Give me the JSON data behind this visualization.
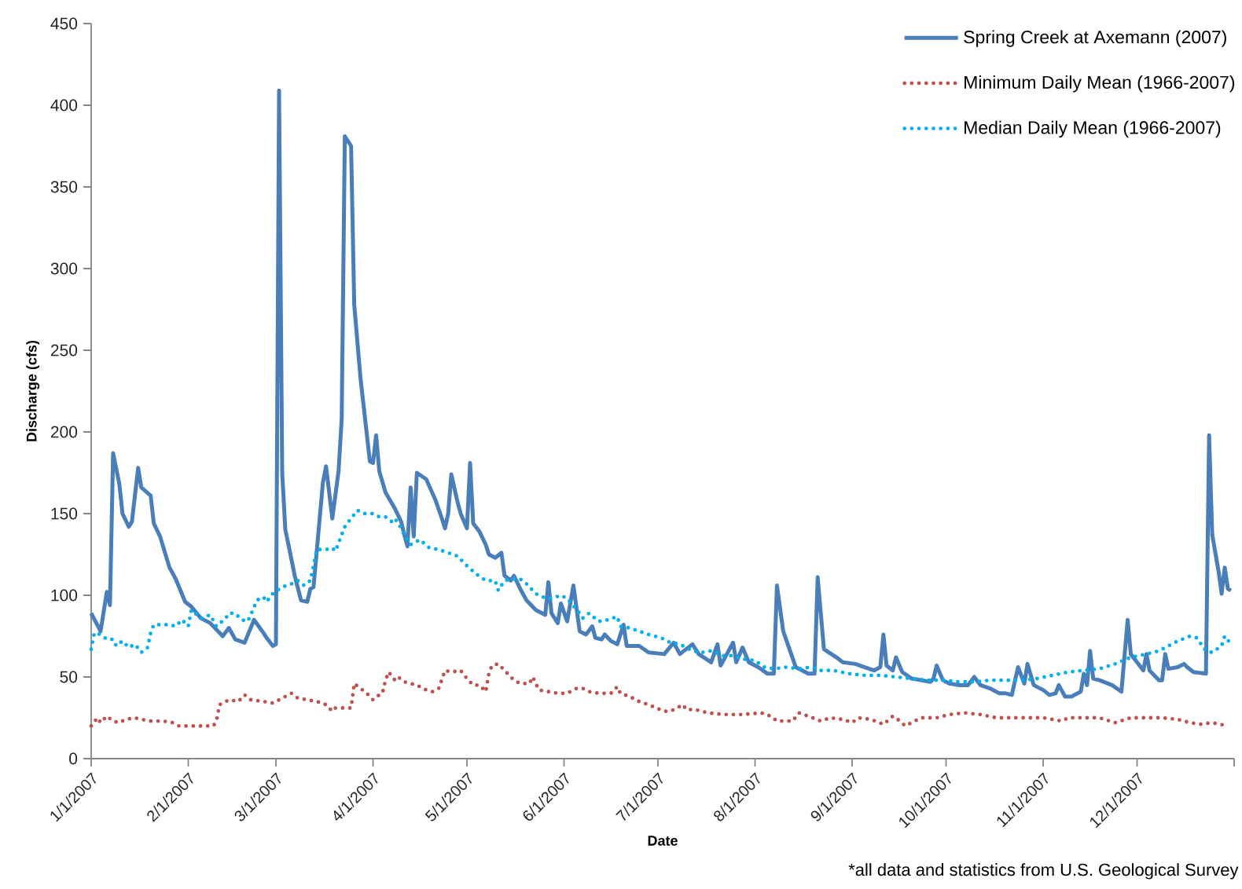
{
  "chart_data": {
    "type": "line",
    "xlabel": "Date",
    "ylabel": "Discharge (cfs)",
    "annotations": [
      "*all data and statistics from U.S. Geological Survey"
    ],
    "xlim": [
      "2007-01-01",
      "2008-01-01"
    ],
    "xticks": [
      {
        "value": "2007-01-01",
        "label": "1/1/2007"
      },
      {
        "value": "2007-02-01",
        "label": "2/1/2007"
      },
      {
        "value": "2007-03-01",
        "label": "3/1/2007"
      },
      {
        "value": "2007-04-01",
        "label": "4/1/2007"
      },
      {
        "value": "2007-05-01",
        "label": "5/1/2007"
      },
      {
        "value": "2007-06-01",
        "label": "6/1/2007"
      },
      {
        "value": "2007-07-01",
        "label": "7/1/2007"
      },
      {
        "value": "2007-08-01",
        "label": "8/1/2007"
      },
      {
        "value": "2007-09-01",
        "label": "9/1/2007"
      },
      {
        "value": "2007-10-01",
        "label": "10/1/2007"
      },
      {
        "value": "2007-11-01",
        "label": "11/1/2007"
      },
      {
        "value": "2007-12-01",
        "label": "12/1/2007"
      },
      {
        "value": "2008-01-01",
        "label": null
      }
    ],
    "ylim": [
      0,
      450
    ],
    "yticks": [
      0,
      50,
      100,
      150,
      200,
      250,
      300,
      350,
      400,
      450
    ],
    "legend": "top right",
    "series": [
      {
        "name": "Spring Creek at Axemann (2007)",
        "color": "#4a7ebb",
        "line_style": "solid",
        "x": [
          "2007-01-01",
          "2007-01-04",
          "2007-01-06",
          "2007-01-07",
          "2007-01-08",
          "2007-01-10",
          "2007-01-11",
          "2007-01-13",
          "2007-01-14",
          "2007-01-16",
          "2007-01-17",
          "2007-01-20",
          "2007-01-21",
          "2007-01-23",
          "2007-01-26",
          "2007-01-28",
          "2007-01-31",
          "2007-02-02",
          "2007-02-05",
          "2007-02-08",
          "2007-02-12",
          "2007-02-14",
          "2007-02-16",
          "2007-02-19",
          "2007-02-22",
          "2007-02-25",
          "2007-02-26",
          "2007-02-28",
          "2007-03-01",
          "2007-03-02",
          "2007-03-03",
          "2007-03-04",
          "2007-03-05",
          "2007-03-07",
          "2007-03-09",
          "2007-03-11",
          "2007-03-12",
          "2007-03-13",
          "2007-03-16",
          "2007-03-17",
          "2007-03-18",
          "2007-03-19",
          "2007-03-21",
          "2007-03-22",
          "2007-03-23",
          "2007-03-24",
          "2007-03-25",
          "2007-03-26",
          "2007-03-28",
          "2007-03-31",
          "2007-04-01",
          "2007-04-02",
          "2007-04-03",
          "2007-04-05",
          "2007-04-08",
          "2007-04-10",
          "2007-04-11",
          "2007-04-12",
          "2007-04-13",
          "2007-04-14",
          "2007-04-15",
          "2007-04-18",
          "2007-04-21",
          "2007-04-23",
          "2007-04-24",
          "2007-04-25",
          "2007-04-26",
          "2007-04-28",
          "2007-04-29",
          "2007-05-01",
          "2007-05-02",
          "2007-05-03",
          "2007-05-05",
          "2007-05-07",
          "2007-05-08",
          "2007-05-10",
          "2007-05-12",
          "2007-05-13",
          "2007-05-15",
          "2007-05-16",
          "2007-05-18",
          "2007-05-20",
          "2007-05-23",
          "2007-05-26",
          "2007-05-27",
          "2007-05-28",
          "2007-05-30",
          "2007-05-31",
          "2007-06-02",
          "2007-06-04",
          "2007-06-06",
          "2007-06-08",
          "2007-06-10",
          "2007-06-11",
          "2007-06-13",
          "2007-06-14",
          "2007-06-16",
          "2007-06-18",
          "2007-06-20",
          "2007-06-21",
          "2007-06-25",
          "2007-06-28",
          "2007-07-03",
          "2007-07-06",
          "2007-07-08",
          "2007-07-12",
          "2007-07-14",
          "2007-07-18",
          "2007-07-20",
          "2007-07-21",
          "2007-07-23",
          "2007-07-25",
          "2007-07-26",
          "2007-07-28",
          "2007-07-30",
          "2007-08-02",
          "2007-08-05",
          "2007-08-07",
          "2007-08-08",
          "2007-08-10",
          "2007-08-12",
          "2007-08-14",
          "2007-08-18",
          "2007-08-20",
          "2007-08-21",
          "2007-08-23",
          "2007-08-27",
          "2007-08-29",
          "2007-09-02",
          "2007-09-05",
          "2007-09-08",
          "2007-09-10",
          "2007-09-11",
          "2007-09-12",
          "2007-09-14",
          "2007-09-15",
          "2007-09-17",
          "2007-09-20",
          "2007-09-23",
          "2007-09-26",
          "2007-09-27",
          "2007-09-28",
          "2007-09-30",
          "2007-10-02",
          "2007-10-05",
          "2007-10-08",
          "2007-10-10",
          "2007-10-12",
          "2007-10-15",
          "2007-10-18",
          "2007-10-20",
          "2007-10-22",
          "2007-10-24",
          "2007-10-26",
          "2007-10-27",
          "2007-10-29",
          "2007-11-01",
          "2007-11-03",
          "2007-11-05",
          "2007-11-06",
          "2007-11-08",
          "2007-11-10",
          "2007-11-13",
          "2007-11-14",
          "2007-11-15",
          "2007-11-16",
          "2007-11-17",
          "2007-11-19",
          "2007-11-23",
          "2007-11-26",
          "2007-11-28",
          "2007-11-29",
          "2007-12-01",
          "2007-12-03",
          "2007-12-04",
          "2007-12-05",
          "2007-12-08",
          "2007-12-09",
          "2007-12-10",
          "2007-12-11",
          "2007-12-14",
          "2007-12-16",
          "2007-12-17",
          "2007-12-19",
          "2007-12-23",
          "2007-12-24",
          "2007-12-25",
          "2007-12-27",
          "2007-12-28",
          "2007-12-29",
          "2007-12-30",
          "2007-12-31"
        ],
        "values": [
          89,
          78,
          102,
          94,
          187,
          168,
          150,
          142,
          145,
          178,
          166,
          161,
          144,
          136,
          117,
          110,
          96,
          93,
          86,
          83,
          75,
          80,
          73,
          71,
          85,
          77,
          74,
          69,
          70,
          409,
          175,
          140,
          131,
          112,
          97,
          96,
          104,
          105,
          169,
          179,
          163,
          147,
          176,
          208,
          381,
          378,
          375,
          278,
          233,
          182,
          181,
          198,
          176,
          163,
          153,
          145,
          137,
          130,
          166,
          136,
          175,
          171,
          158,
          147,
          141,
          150,
          174,
          157,
          150,
          141,
          181,
          144,
          139,
          131,
          125,
          123,
          126,
          112,
          109,
          112,
          104,
          97,
          91,
          88,
          108,
          89,
          83,
          95,
          84,
          106,
          78,
          76,
          81,
          74,
          73,
          76,
          72,
          70,
          82,
          69,
          69,
          65,
          64,
          71,
          64,
          70,
          64,
          59,
          70,
          57,
          64,
          71,
          59,
          68,
          59,
          56,
          52,
          52,
          106,
          78,
          67,
          56,
          52,
          52,
          111,
          67,
          62,
          59,
          58,
          56,
          54,
          56,
          76,
          57,
          54,
          62,
          53,
          49,
          48,
          47,
          49,
          57,
          48,
          46,
          45,
          45,
          50,
          45,
          43,
          40,
          40,
          39,
          56,
          46,
          58,
          45,
          42,
          39,
          40,
          45,
          38,
          38,
          41,
          52,
          45,
          66,
          49,
          48,
          45,
          41,
          85,
          64,
          59,
          54,
          64,
          54,
          48,
          48,
          64,
          55,
          56,
          58,
          56,
          53,
          52,
          198,
          137,
          115,
          101,
          117,
          104,
          103
        ]
      },
      {
        "name": "Minimum Daily Mean (1966-2007)",
        "color": "#c0504d",
        "line_style": "dotted",
        "x": [
          "2007-01-01",
          "2007-01-03",
          "2007-01-04",
          "2007-01-06",
          "2007-01-08",
          "2007-01-10",
          "2007-01-12",
          "2007-01-15",
          "2007-01-17",
          "2007-01-20",
          "2007-01-24",
          "2007-01-27",
          "2007-01-29",
          "2007-02-01",
          "2007-02-05",
          "2007-02-09",
          "2007-02-10",
          "2007-02-11",
          "2007-02-14",
          "2007-02-17",
          "2007-02-19",
          "2007-02-21",
          "2007-02-25",
          "2007-02-28",
          "2007-03-03",
          "2007-03-06",
          "2007-03-08",
          "2007-03-11",
          "2007-03-14",
          "2007-03-17",
          "2007-03-19",
          "2007-03-20",
          "2007-03-23",
          "2007-03-25",
          "2007-03-26",
          "2007-03-28",
          "2007-03-30",
          "2007-04-01",
          "2007-04-03",
          "2007-04-04",
          "2007-04-05",
          "2007-04-06",
          "2007-04-08",
          "2007-04-09",
          "2007-04-11",
          "2007-04-13",
          "2007-04-15",
          "2007-04-18",
          "2007-04-20",
          "2007-04-22",
          "2007-04-24",
          "2007-04-26",
          "2007-04-29",
          "2007-05-01",
          "2007-05-03",
          "2007-05-05",
          "2007-05-07",
          "2007-05-08",
          "2007-05-09",
          "2007-05-11",
          "2007-05-13",
          "2007-05-16",
          "2007-05-18",
          "2007-05-21",
          "2007-05-22",
          "2007-05-24",
          "2007-05-27",
          "2007-05-30",
          "2007-06-02",
          "2007-06-05",
          "2007-06-07",
          "2007-06-09",
          "2007-06-12",
          "2007-06-16",
          "2007-06-18",
          "2007-06-19",
          "2007-06-22",
          "2007-06-25",
          "2007-06-28",
          "2007-07-03",
          "2007-07-05",
          "2007-07-07",
          "2007-07-09",
          "2007-07-10",
          "2007-07-13",
          "2007-07-17",
          "2007-07-22",
          "2007-07-28",
          "2007-08-03",
          "2007-08-06",
          "2007-08-08",
          "2007-08-13",
          "2007-08-15",
          "2007-08-18",
          "2007-08-22",
          "2007-08-25",
          "2007-08-29",
          "2007-09-01",
          "2007-09-03",
          "2007-09-07",
          "2007-09-11",
          "2007-09-14",
          "2007-09-15",
          "2007-09-18",
          "2007-09-20",
          "2007-09-23",
          "2007-09-28",
          "2007-10-02",
          "2007-10-07",
          "2007-10-12",
          "2007-10-17",
          "2007-10-22",
          "2007-10-27",
          "2007-11-01",
          "2007-11-07",
          "2007-11-09",
          "2007-11-14",
          "2007-11-19",
          "2007-11-24",
          "2007-11-29",
          "2007-12-04",
          "2007-12-09",
          "2007-12-14",
          "2007-12-18",
          "2007-12-21",
          "2007-12-25",
          "2007-12-30"
        ],
        "values": [
          20,
          25,
          22,
          26,
          23,
          22,
          24,
          25,
          24,
          23,
          23,
          22,
          20,
          20,
          20,
          20,
          23,
          33,
          36,
          35,
          39,
          36,
          35,
          34,
          37,
          40,
          37,
          36,
          35,
          33,
          29,
          31,
          31,
          31,
          46,
          43,
          40,
          36,
          39,
          40,
          48,
          53,
          48,
          50,
          47,
          46,
          45,
          42,
          41,
          43,
          54,
          53,
          54,
          49,
          45,
          45,
          41,
          52,
          57,
          58,
          54,
          48,
          46,
          46,
          50,
          42,
          41,
          40,
          40,
          43,
          43,
          41,
          40,
          40,
          44,
          40,
          38,
          35,
          33,
          29,
          29,
          31,
          33,
          30,
          30,
          28,
          27,
          27,
          28,
          26,
          23,
          23,
          28,
          26,
          23,
          25,
          24,
          22,
          25,
          24,
          21,
          26,
          25,
          20,
          22,
          25,
          25,
          27,
          28,
          27,
          25,
          25,
          25,
          25,
          23,
          25,
          25,
          25,
          22,
          25,
          25,
          25,
          24,
          22,
          21,
          22,
          20
        ]
      },
      {
        "name": "Median Daily Mean (1966-2007)",
        "color": "#00b0f0",
        "line_style": "dotted",
        "x": [
          "2007-01-01",
          "2007-01-02",
          "2007-01-04",
          "2007-01-06",
          "2007-01-08",
          "2007-01-09",
          "2007-01-11",
          "2007-01-13",
          "2007-01-15",
          "2007-01-17",
          "2007-01-19",
          "2007-01-20",
          "2007-01-21",
          "2007-01-26",
          "2007-01-28",
          "2007-01-30",
          "2007-02-01",
          "2007-02-02",
          "2007-02-05",
          "2007-02-08",
          "2007-02-10",
          "2007-02-13",
          "2007-02-14",
          "2007-02-16",
          "2007-02-18",
          "2007-02-20",
          "2007-02-23",
          "2007-02-25",
          "2007-02-26",
          "2007-02-28",
          "2007-03-03",
          "2007-03-06",
          "2007-03-08",
          "2007-03-10",
          "2007-03-12",
          "2007-03-13",
          "2007-03-14",
          "2007-03-17",
          "2007-03-19",
          "2007-03-20",
          "2007-03-22",
          "2007-03-23",
          "2007-03-25",
          "2007-03-27",
          "2007-03-29",
          "2007-04-01",
          "2007-04-03",
          "2007-04-05",
          "2007-04-07",
          "2007-04-08",
          "2007-04-10",
          "2007-04-11",
          "2007-04-13",
          "2007-04-16",
          "2007-04-19",
          "2007-04-22",
          "2007-04-25",
          "2007-04-28",
          "2007-05-01",
          "2007-05-04",
          "2007-05-07",
          "2007-05-10",
          "2007-05-11",
          "2007-05-13",
          "2007-05-16",
          "2007-05-18",
          "2007-05-20",
          "2007-05-23",
          "2007-05-25",
          "2007-05-28",
          "2007-05-31",
          "2007-06-02",
          "2007-06-06",
          "2007-06-07",
          "2007-06-09",
          "2007-06-12",
          "2007-06-15",
          "2007-06-18",
          "2007-06-19",
          "2007-06-22",
          "2007-06-25",
          "2007-06-28",
          "2007-07-02",
          "2007-07-05",
          "2007-07-08",
          "2007-07-12",
          "2007-07-15",
          "2007-07-18",
          "2007-07-22",
          "2007-07-25",
          "2007-07-28",
          "2007-08-01",
          "2007-08-04",
          "2007-08-07",
          "2007-08-11",
          "2007-08-15",
          "2007-08-19",
          "2007-08-22",
          "2007-08-26",
          "2007-08-31",
          "2007-09-05",
          "2007-09-10",
          "2007-09-15",
          "2007-09-20",
          "2007-09-25",
          "2007-09-30",
          "2007-10-05",
          "2007-10-10",
          "2007-10-15",
          "2007-10-20",
          "2007-10-25",
          "2007-10-30",
          "2007-11-04",
          "2007-11-09",
          "2007-11-14",
          "2007-11-19",
          "2007-11-24",
          "2007-11-29",
          "2007-12-04",
          "2007-12-08",
          "2007-12-11",
          "2007-12-14",
          "2007-12-18",
          "2007-12-20",
          "2007-12-23",
          "2007-12-25",
          "2007-12-28",
          "2007-12-29",
          "2007-12-31"
        ],
        "values": [
          67,
          77,
          76,
          73,
          73,
          69,
          72,
          68,
          70,
          65,
          68,
          77,
          82,
          82,
          81,
          85,
          81,
          91,
          86,
          88,
          81,
          86,
          89,
          89,
          85,
          84,
          97,
          99,
          96,
          101,
          105,
          107,
          109,
          106,
          109,
          118,
          128,
          128,
          129,
          127,
          137,
          142,
          147,
          152,
          150,
          150,
          148,
          148,
          145,
          147,
          141,
          137,
          131,
          134,
          129,
          128,
          126,
          124,
          118,
          113,
          109,
          109,
          103,
          109,
          110,
          110,
          107,
          101,
          99,
          98,
          100,
          98,
          89,
          86,
          89,
          84,
          85,
          87,
          81,
          80,
          78,
          76,
          74,
          71,
          70,
          66,
          65,
          66,
          63,
          63,
          61,
          60,
          56,
          55,
          56,
          55,
          56,
          54,
          54,
          52,
          51,
          51,
          50,
          49,
          48,
          48,
          47,
          47,
          48,
          48,
          48,
          49,
          51,
          53,
          54,
          55,
          58,
          62,
          64,
          66,
          69,
          72,
          75,
          74,
          66,
          65,
          69,
          75,
          70
        ]
      }
    ]
  }
}
